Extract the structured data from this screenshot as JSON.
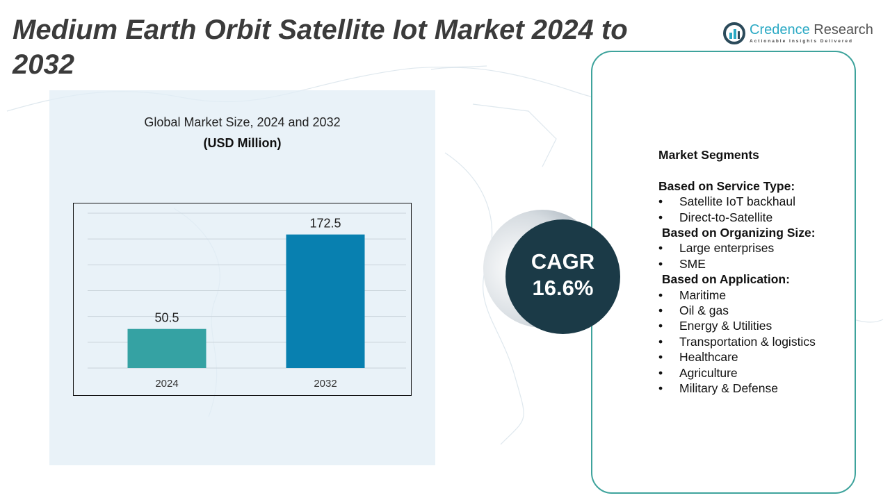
{
  "title": "Medium Earth Orbit Satellite Iot Market 2024 to 2032",
  "logo": {
    "brand_part1": "Credence",
    "brand_part2": " Research",
    "tagline": "Actionable Insights Delivered"
  },
  "chart_data": {
    "type": "bar",
    "title": "Global Market Size, 2024 and 2032",
    "unit": "(USD Million)",
    "categories": [
      "2024",
      "2032"
    ],
    "values": [
      50.5,
      172.5
    ],
    "value_labels": [
      "50.5",
      "172.5"
    ],
    "colors": [
      "#35a2a3",
      "#0880b0"
    ],
    "ylim": [
      0,
      200
    ],
    "grid": true
  },
  "cagr": {
    "label": "CAGR",
    "value": "16.6%"
  },
  "segments": {
    "heading": "Market Segments",
    "groups": [
      {
        "title": "Based on Service Type:",
        "items": [
          "Satellite IoT backhaul",
          "Direct-to-Satellite"
        ]
      },
      {
        "title": " Based on Organizing Size:",
        "items": [
          "Large enterprises",
          "SME"
        ]
      },
      {
        "title": " Based on Application:",
        "items": [
          "Maritime",
          "Oil & gas",
          "Energy & Utilities",
          "Transportation & logistics",
          "Healthcare",
          "Agriculture",
          "Military & Defense"
        ]
      }
    ]
  }
}
